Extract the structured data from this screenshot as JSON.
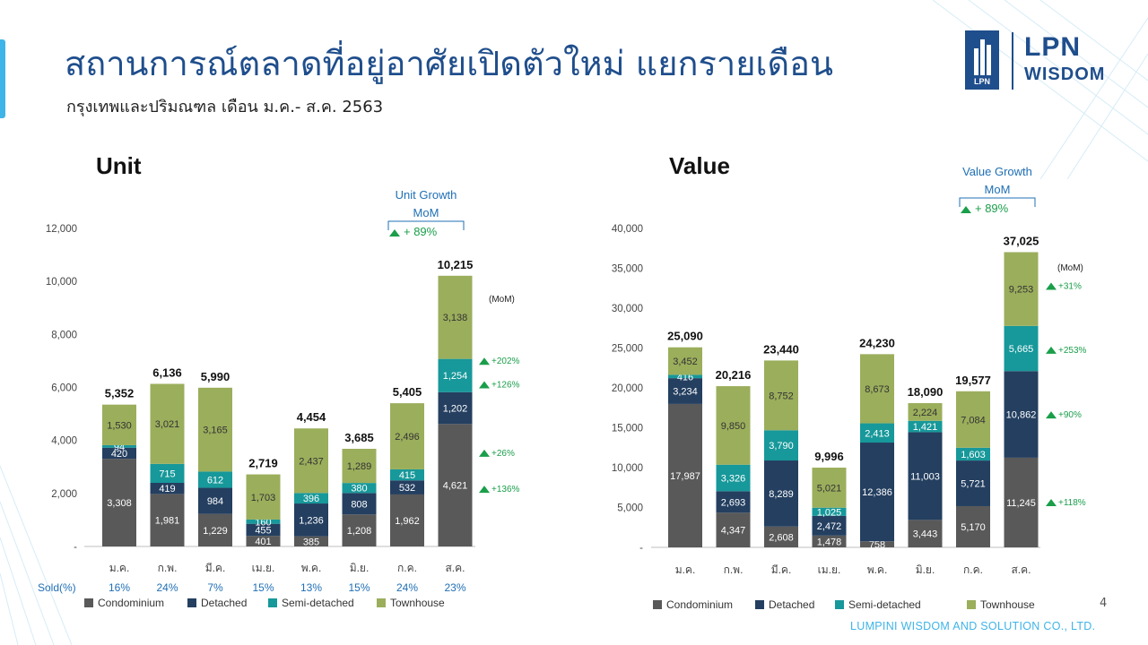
{
  "header": {
    "title": "สถานการณ์ตลาดที่อยู่อาศัยเปิดตัวใหม่ แยกรายเดือน",
    "subtitle": "กรุงเทพและปริมณฑล เดือน ม.ค.- ส.ค. 2563"
  },
  "logo": {
    "line1": "LPN",
    "line2": "WISDOM",
    "box_label": "LPN"
  },
  "footer": {
    "company": "LUMPINI WISDOM AND SOLUTION CO., LTD.",
    "page": "4"
  },
  "colors": {
    "condominium": "#595959",
    "detached": "#243F60",
    "semi_detached": "#17989A",
    "townhouse": "#9BAE5C",
    "brand": "#1F4E8C",
    "growth_green": "#1A9E4A",
    "accent": "#3FB4E8"
  },
  "chart_data": [
    {
      "type": "bar",
      "stacked": true,
      "title": "Unit",
      "categories": [
        "ม.ค.",
        "ก.พ.",
        "มี.ค.",
        "เม.ย.",
        "พ.ค.",
        "มิ.ย.",
        "ก.ค.",
        "ส.ค."
      ],
      "series": [
        {
          "name": "Condominium",
          "values": [
            3308,
            1981,
            1229,
            401,
            385,
            1208,
            1962,
            4621
          ]
        },
        {
          "name": "Detached",
          "values": [
            420,
            419,
            984,
            455,
            1236,
            808,
            532,
            1202
          ]
        },
        {
          "name": "Semi-detached",
          "values": [
            94,
            715,
            612,
            160,
            396,
            380,
            415,
            1254
          ]
        },
        {
          "name": "Townhouse",
          "values": [
            1530,
            3021,
            3165,
            1703,
            2437,
            1289,
            2496,
            3138
          ]
        }
      ],
      "totals": [
        5352,
        6136,
        5990,
        2719,
        4454,
        3685,
        5405,
        10215
      ],
      "ylim": [
        0,
        12000
      ],
      "yticks": [
        "-",
        "2,000",
        "4,000",
        "6,000",
        "8,000",
        "10,000",
        "12,000"
      ],
      "mom_label": "(MoM)",
      "mom": [
        "+136%",
        "+126%",
        "+202%",
        "+26%"
      ],
      "growth_label": [
        "Unit Growth",
        "MoM"
      ],
      "growth_value": "+ 89%",
      "sold_label": "Sold(%)",
      "sold": [
        "16%",
        "24%",
        "7%",
        "15%",
        "13%",
        "15%",
        "24%",
        "23%"
      ],
      "legend_position": "bottom"
    },
    {
      "type": "bar",
      "stacked": true,
      "title": "Value",
      "categories": [
        "ม.ค.",
        "ก.พ.",
        "มี.ค.",
        "เม.ย.",
        "พ.ค.",
        "มิ.ย.",
        "ก.ค.",
        "ส.ค."
      ],
      "series": [
        {
          "name": "Condominium",
          "values": [
            17987,
            4347,
            2608,
            1478,
            758,
            3443,
            5170,
            11245
          ]
        },
        {
          "name": "Detached",
          "values": [
            3234,
            2693,
            8289,
            2472,
            12386,
            11003,
            5721,
            10862
          ]
        },
        {
          "name": "Semi-detached",
          "values": [
            416,
            3326,
            3790,
            1025,
            2413,
            1421,
            1603,
            5665
          ]
        },
        {
          "name": "Townhouse",
          "values": [
            3452,
            9850,
            8752,
            5021,
            8673,
            2224,
            7084,
            9253
          ]
        }
      ],
      "totals": [
        25090,
        20216,
        23440,
        9996,
        24230,
        18090,
        19577,
        37025
      ],
      "ylim": [
        0,
        40000
      ],
      "yticks": [
        "-",
        "5,000",
        "10,000",
        "15,000",
        "20,000",
        "25,000",
        "30,000",
        "35,000",
        "40,000"
      ],
      "mom_label": "(MoM)",
      "mom": [
        "+118%",
        "+90%",
        "+253%",
        "+31%"
      ],
      "growth_label": [
        "Value Growth",
        "MoM"
      ],
      "growth_value": "+ 89%",
      "legend_position": "bottom"
    }
  ]
}
